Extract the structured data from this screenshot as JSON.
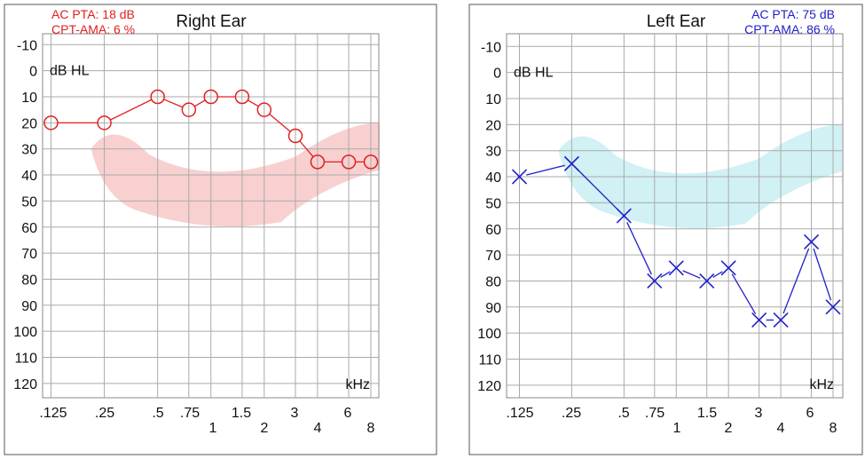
{
  "chart_data": [
    {
      "type": "line",
      "title": "Right Ear",
      "ylabel": "dB HL",
      "xunit": "kHz",
      "ylim": [
        -10,
        120
      ],
      "yticks": [
        "-10",
        "0",
        "10",
        "20",
        "30",
        "40",
        "50",
        "60",
        "70",
        "80",
        "90",
        "100",
        "110",
        "120"
      ],
      "xticks_upper": [
        ".125",
        ".25",
        ".5",
        ".75",
        "1.5",
        "3",
        "6"
      ],
      "xticks_lower": [
        "1",
        "2",
        "4",
        "8"
      ],
      "stats": [
        "AC PTA: 18 dB",
        "CPT-AMA: 6 %"
      ],
      "stats_color": "#e02020",
      "series_color": "#e02020",
      "band_color": "#f7c8c8",
      "marker": "circle",
      "series": [
        {
          "x": [
            0.125,
            0.25,
            0.5,
            0.75,
            1,
            1.5,
            2,
            3,
            4,
            6,
            8
          ],
          "y": [
            20,
            20,
            10,
            15,
            10,
            10,
            15,
            25,
            35,
            35,
            35
          ]
        }
      ]
    },
    {
      "type": "line",
      "title": "Left Ear",
      "ylabel": "dB HL",
      "xunit": "kHz",
      "ylim": [
        -10,
        120
      ],
      "yticks": [
        "-10",
        "0",
        "10",
        "20",
        "30",
        "40",
        "50",
        "60",
        "70",
        "80",
        "90",
        "100",
        "110",
        "120"
      ],
      "xticks_upper": [
        ".125",
        ".25",
        ".5",
        ".75",
        "1.5",
        "3",
        "6"
      ],
      "xticks_lower": [
        "1",
        "2",
        "4",
        "8"
      ],
      "stats": [
        "AC PTA: 75 dB",
        "CPT-AMA: 86 %"
      ],
      "stats_color": "#2020c8",
      "series_color": "#2020c8",
      "band_color": "#c9eef2",
      "marker": "x",
      "series": [
        {
          "x": [
            0.125,
            0.25,
            0.5,
            0.75,
            1,
            1.5,
            2,
            3,
            4,
            6,
            8
          ],
          "y": [
            40,
            35,
            55,
            80,
            75,
            80,
            75,
            95,
            95,
            65,
            90
          ]
        }
      ]
    }
  ]
}
